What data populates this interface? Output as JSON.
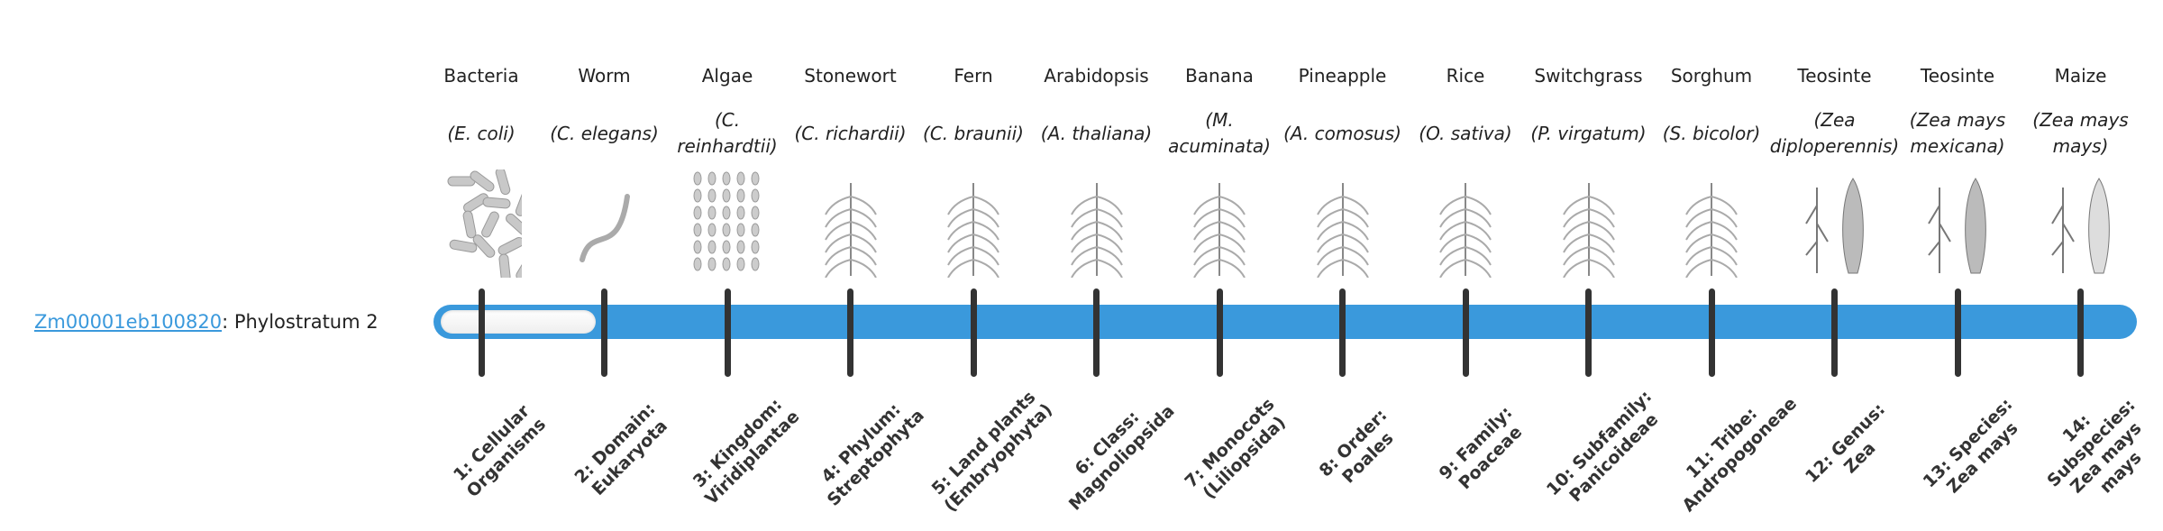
{
  "gene": {
    "id": "Zm00001eb100820",
    "suffix": ": Phylostratum 2",
    "phylostratum": 2
  },
  "colors": {
    "bar": "#3a99dc",
    "tick": "#333333",
    "link": "#3a99dc"
  },
  "organisms": [
    {
      "common": "Bacteria",
      "scientific": "(E. coli)",
      "icon": "bacteria-icon"
    },
    {
      "common": "Worm",
      "scientific": "(C. elegans)",
      "icon": "worm-icon"
    },
    {
      "common": "Algae",
      "scientific": "(C. reinhardtii)",
      "icon": "algae-icon"
    },
    {
      "common": "Stonewort",
      "scientific": "(C. richardii)",
      "icon": "stonewort-icon"
    },
    {
      "common": "Fern",
      "scientific": "(C. braunii)",
      "icon": "fern-icon"
    },
    {
      "common": "Arabidopsis",
      "scientific": "(A. thaliana)",
      "icon": "arabidopsis-icon"
    },
    {
      "common": "Banana",
      "scientific": "(M. acuminata)",
      "icon": "banana-icon"
    },
    {
      "common": "Pineapple",
      "scientific": "(A. comosus)",
      "icon": "pineapple-icon"
    },
    {
      "common": "Rice",
      "scientific": "(O. sativa)",
      "icon": "rice-icon"
    },
    {
      "common": "Switchgrass",
      "scientific": "(P. virgatum)",
      "icon": "switchgrass-icon"
    },
    {
      "common": "Sorghum",
      "scientific": "(S. bicolor)",
      "icon": "sorghum-icon"
    },
    {
      "common": "Teosinte",
      "scientific": "(Zea diploperennis)",
      "icon": "teosinte-icon"
    },
    {
      "common": "Teosinte",
      "scientific": "(Zea mays mexicana)",
      "icon": "teosinte-icon"
    },
    {
      "common": "Maize",
      "scientific": "(Zea mays mays)",
      "icon": "maize-icon"
    }
  ],
  "strata": [
    "1: Cellular Organisms",
    "2: Domain: Eukaryota",
    "3: Kingdom: Viridiplantae",
    "4: Phylum: Streptophyta",
    "5: Land plants (Embryophyta)",
    "6: Class: Magnoliopsida",
    "7: Monocots (Liliopsida)",
    "8: Order: Poales",
    "9: Family: Poaceae",
    "10: Subfamily: Panicoideae",
    "11: Tribe: Andropogoneae",
    "12: Genus: Zea",
    "13: Species: Zea mays",
    "14: Subspecies: Zea mays mays"
  ]
}
